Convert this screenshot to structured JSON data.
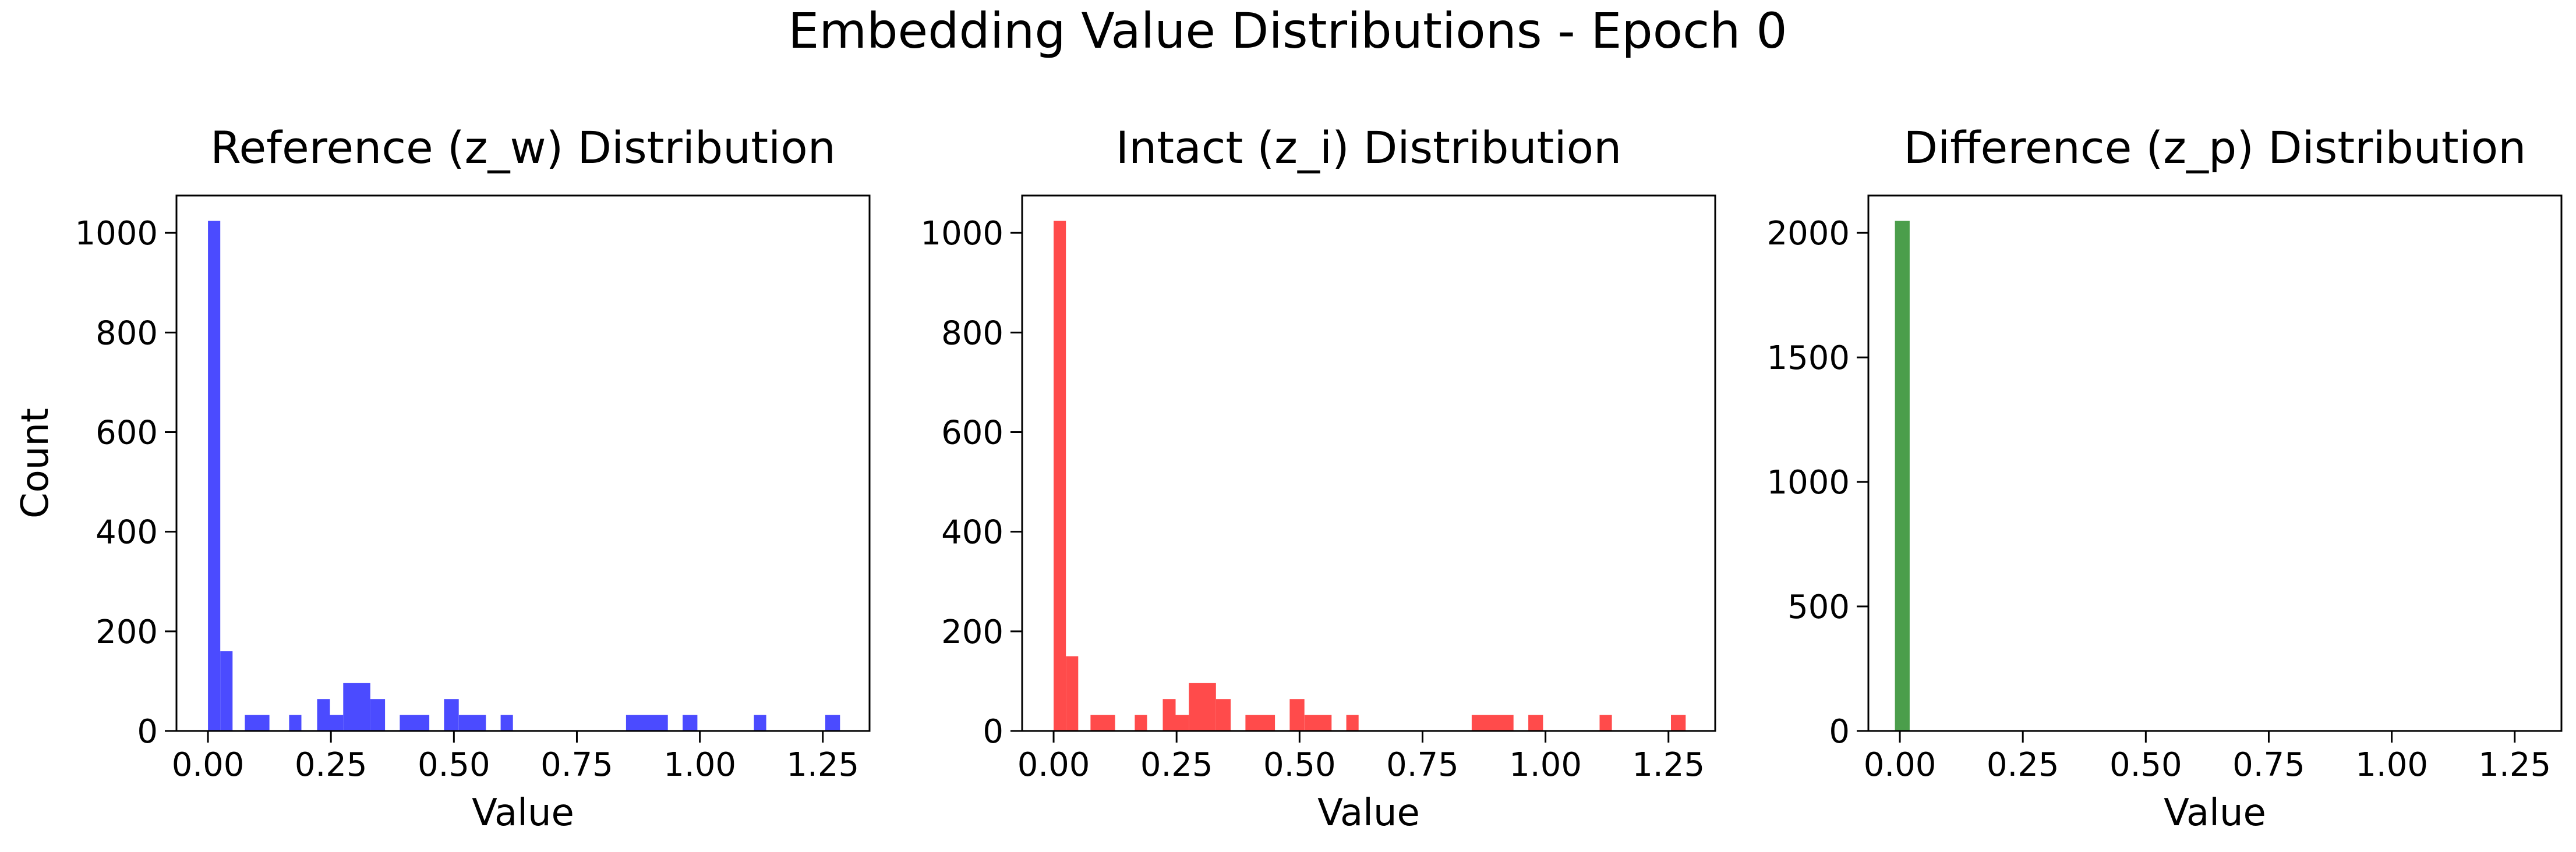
{
  "figure": {
    "suptitle": "Embedding Value Distributions - Epoch 0"
  },
  "chart_data": [
    {
      "type": "bar",
      "title": "Reference (z_w) Distribution",
      "xlabel": "Value",
      "ylabel": "Count",
      "xlim": [
        -0.064,
        1.345
      ],
      "ylim": [
        0,
        1075
      ],
      "xticks": [
        0.0,
        0.25,
        0.5,
        0.75,
        1.0,
        1.25
      ],
      "xtick_labels": [
        "0.00",
        "0.25",
        "0.50",
        "0.75",
        "1.00",
        "1.25"
      ],
      "yticks": [
        0,
        200,
        400,
        600,
        800,
        1000
      ],
      "ytick_labels": [
        "0",
        "200",
        "400",
        "600",
        "800",
        "1000"
      ],
      "color": "#4b4bff",
      "bins": [
        {
          "x0": -0.0,
          "x1": 0.025,
          "count": 1024
        },
        {
          "x0": 0.025,
          "x1": 0.05,
          "count": 160
        },
        {
          "x0": 0.075,
          "x1": 0.125,
          "count": 32
        },
        {
          "x0": 0.165,
          "x1": 0.19,
          "count": 32
        },
        {
          "x0": 0.222,
          "x1": 0.248,
          "count": 64
        },
        {
          "x0": 0.248,
          "x1": 0.275,
          "count": 32
        },
        {
          "x0": 0.275,
          "x1": 0.33,
          "count": 96
        },
        {
          "x0": 0.33,
          "x1": 0.36,
          "count": 64
        },
        {
          "x0": 0.39,
          "x1": 0.45,
          "count": 32
        },
        {
          "x0": 0.48,
          "x1": 0.51,
          "count": 64
        },
        {
          "x0": 0.51,
          "x1": 0.565,
          "count": 32
        },
        {
          "x0": 0.595,
          "x1": 0.62,
          "count": 32
        },
        {
          "x0": 0.85,
          "x1": 0.935,
          "count": 32
        },
        {
          "x0": 0.965,
          "x1": 0.995,
          "count": 32
        },
        {
          "x0": 1.11,
          "x1": 1.135,
          "count": 32
        },
        {
          "x0": 1.255,
          "x1": 1.285,
          "count": 32
        }
      ]
    },
    {
      "type": "bar",
      "title": "Intact (z_i) Distribution",
      "xlabel": "Value",
      "ylabel": "",
      "xlim": [
        -0.064,
        1.345
      ],
      "ylim": [
        0,
        1075
      ],
      "xticks": [
        0.0,
        0.25,
        0.5,
        0.75,
        1.0,
        1.25
      ],
      "xtick_labels": [
        "0.00",
        "0.25",
        "0.50",
        "0.75",
        "1.00",
        "1.25"
      ],
      "yticks": [
        0,
        200,
        400,
        600,
        800,
        1000
      ],
      "ytick_labels": [
        "0",
        "200",
        "400",
        "600",
        "800",
        "1000"
      ],
      "color": "#ff4b4b",
      "bins": [
        {
          "x0": -0.0,
          "x1": 0.025,
          "count": 1024
        },
        {
          "x0": 0.025,
          "x1": 0.05,
          "count": 150
        },
        {
          "x0": 0.075,
          "x1": 0.125,
          "count": 32
        },
        {
          "x0": 0.165,
          "x1": 0.19,
          "count": 32
        },
        {
          "x0": 0.222,
          "x1": 0.248,
          "count": 64
        },
        {
          "x0": 0.248,
          "x1": 0.275,
          "count": 32
        },
        {
          "x0": 0.275,
          "x1": 0.33,
          "count": 96
        },
        {
          "x0": 0.33,
          "x1": 0.36,
          "count": 64
        },
        {
          "x0": 0.39,
          "x1": 0.45,
          "count": 32
        },
        {
          "x0": 0.48,
          "x1": 0.51,
          "count": 64
        },
        {
          "x0": 0.51,
          "x1": 0.565,
          "count": 32
        },
        {
          "x0": 0.595,
          "x1": 0.62,
          "count": 32
        },
        {
          "x0": 0.85,
          "x1": 0.935,
          "count": 32
        },
        {
          "x0": 0.965,
          "x1": 0.995,
          "count": 32
        },
        {
          "x0": 1.11,
          "x1": 1.135,
          "count": 32
        },
        {
          "x0": 1.255,
          "x1": 1.285,
          "count": 32
        }
      ]
    },
    {
      "type": "bar",
      "title": "Difference (z_p) Distribution",
      "xlabel": "Value",
      "ylabel": "",
      "xlim": [
        -0.064,
        1.345
      ],
      "ylim": [
        0,
        2150
      ],
      "xticks": [
        0.0,
        0.25,
        0.5,
        0.75,
        1.0,
        1.25
      ],
      "xtick_labels": [
        "0.00",
        "0.25",
        "0.50",
        "0.75",
        "1.00",
        "1.25"
      ],
      "yticks": [
        0,
        500,
        1000,
        1500,
        2000
      ],
      "ytick_labels": [
        "0",
        "500",
        "1000",
        "1500",
        "2000"
      ],
      "color": "#4b9e4b",
      "bins": [
        {
          "x0": -0.01,
          "x1": 0.02,
          "count": 2048
        }
      ]
    }
  ]
}
